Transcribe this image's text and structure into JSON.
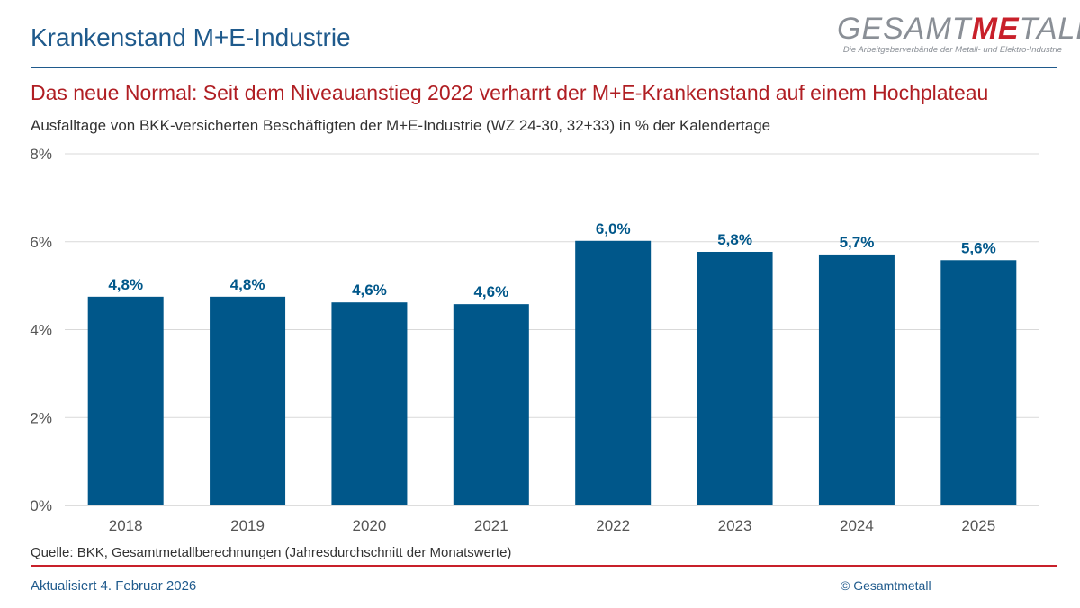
{
  "header": {
    "title": "Krankenstand M+E-Industrie",
    "logo": {
      "text_pre": "GESAMT",
      "text_me": "ME",
      "text_post": "TALL",
      "tagline": "Die Arbeitgeberverbände der Metall- und Elektro-Industrie"
    }
  },
  "headline": "Das neue Normal: Seit dem Niveauanstieg 2022 verharrt der M+E-Krankenstand auf einem Hochplateau",
  "footer": {
    "source": "Quelle: BKK, Gesamtmetallberechnungen (Jahresdurchschnitt der Monatswerte)",
    "updated": "Aktualisiert 4. Februar 2026",
    "copyright": "© Gesamtmetall"
  },
  "colors": {
    "bar": "#00578a",
    "title": "#1f5a8c",
    "accent": "#c8202a"
  },
  "chart_data": {
    "type": "bar",
    "title": "Ausfalltage von BKK-versicherten Beschäftigten der M+E-Industrie (WZ 24-30, 32+33) in % der Kalendertage",
    "categories": [
      "2018",
      "2019",
      "2020",
      "2021",
      "2022",
      "2023",
      "2024",
      "2025"
    ],
    "values": [
      4.75,
      4.75,
      4.62,
      4.58,
      6.02,
      5.77,
      5.71,
      5.58
    ],
    "data_labels": [
      "4,8%",
      "4,8%",
      "4,6%",
      "4,6%",
      "6,0%",
      "5,8%",
      "5,7%",
      "5,6%"
    ],
    "yticks": [
      0,
      2,
      4,
      6,
      8
    ],
    "ytick_labels": [
      "0%",
      "2%",
      "4%",
      "6%",
      "8%"
    ],
    "ylim": [
      0,
      8
    ],
    "xlabel": "",
    "ylabel": "",
    "grid": true,
    "legend": "none"
  }
}
